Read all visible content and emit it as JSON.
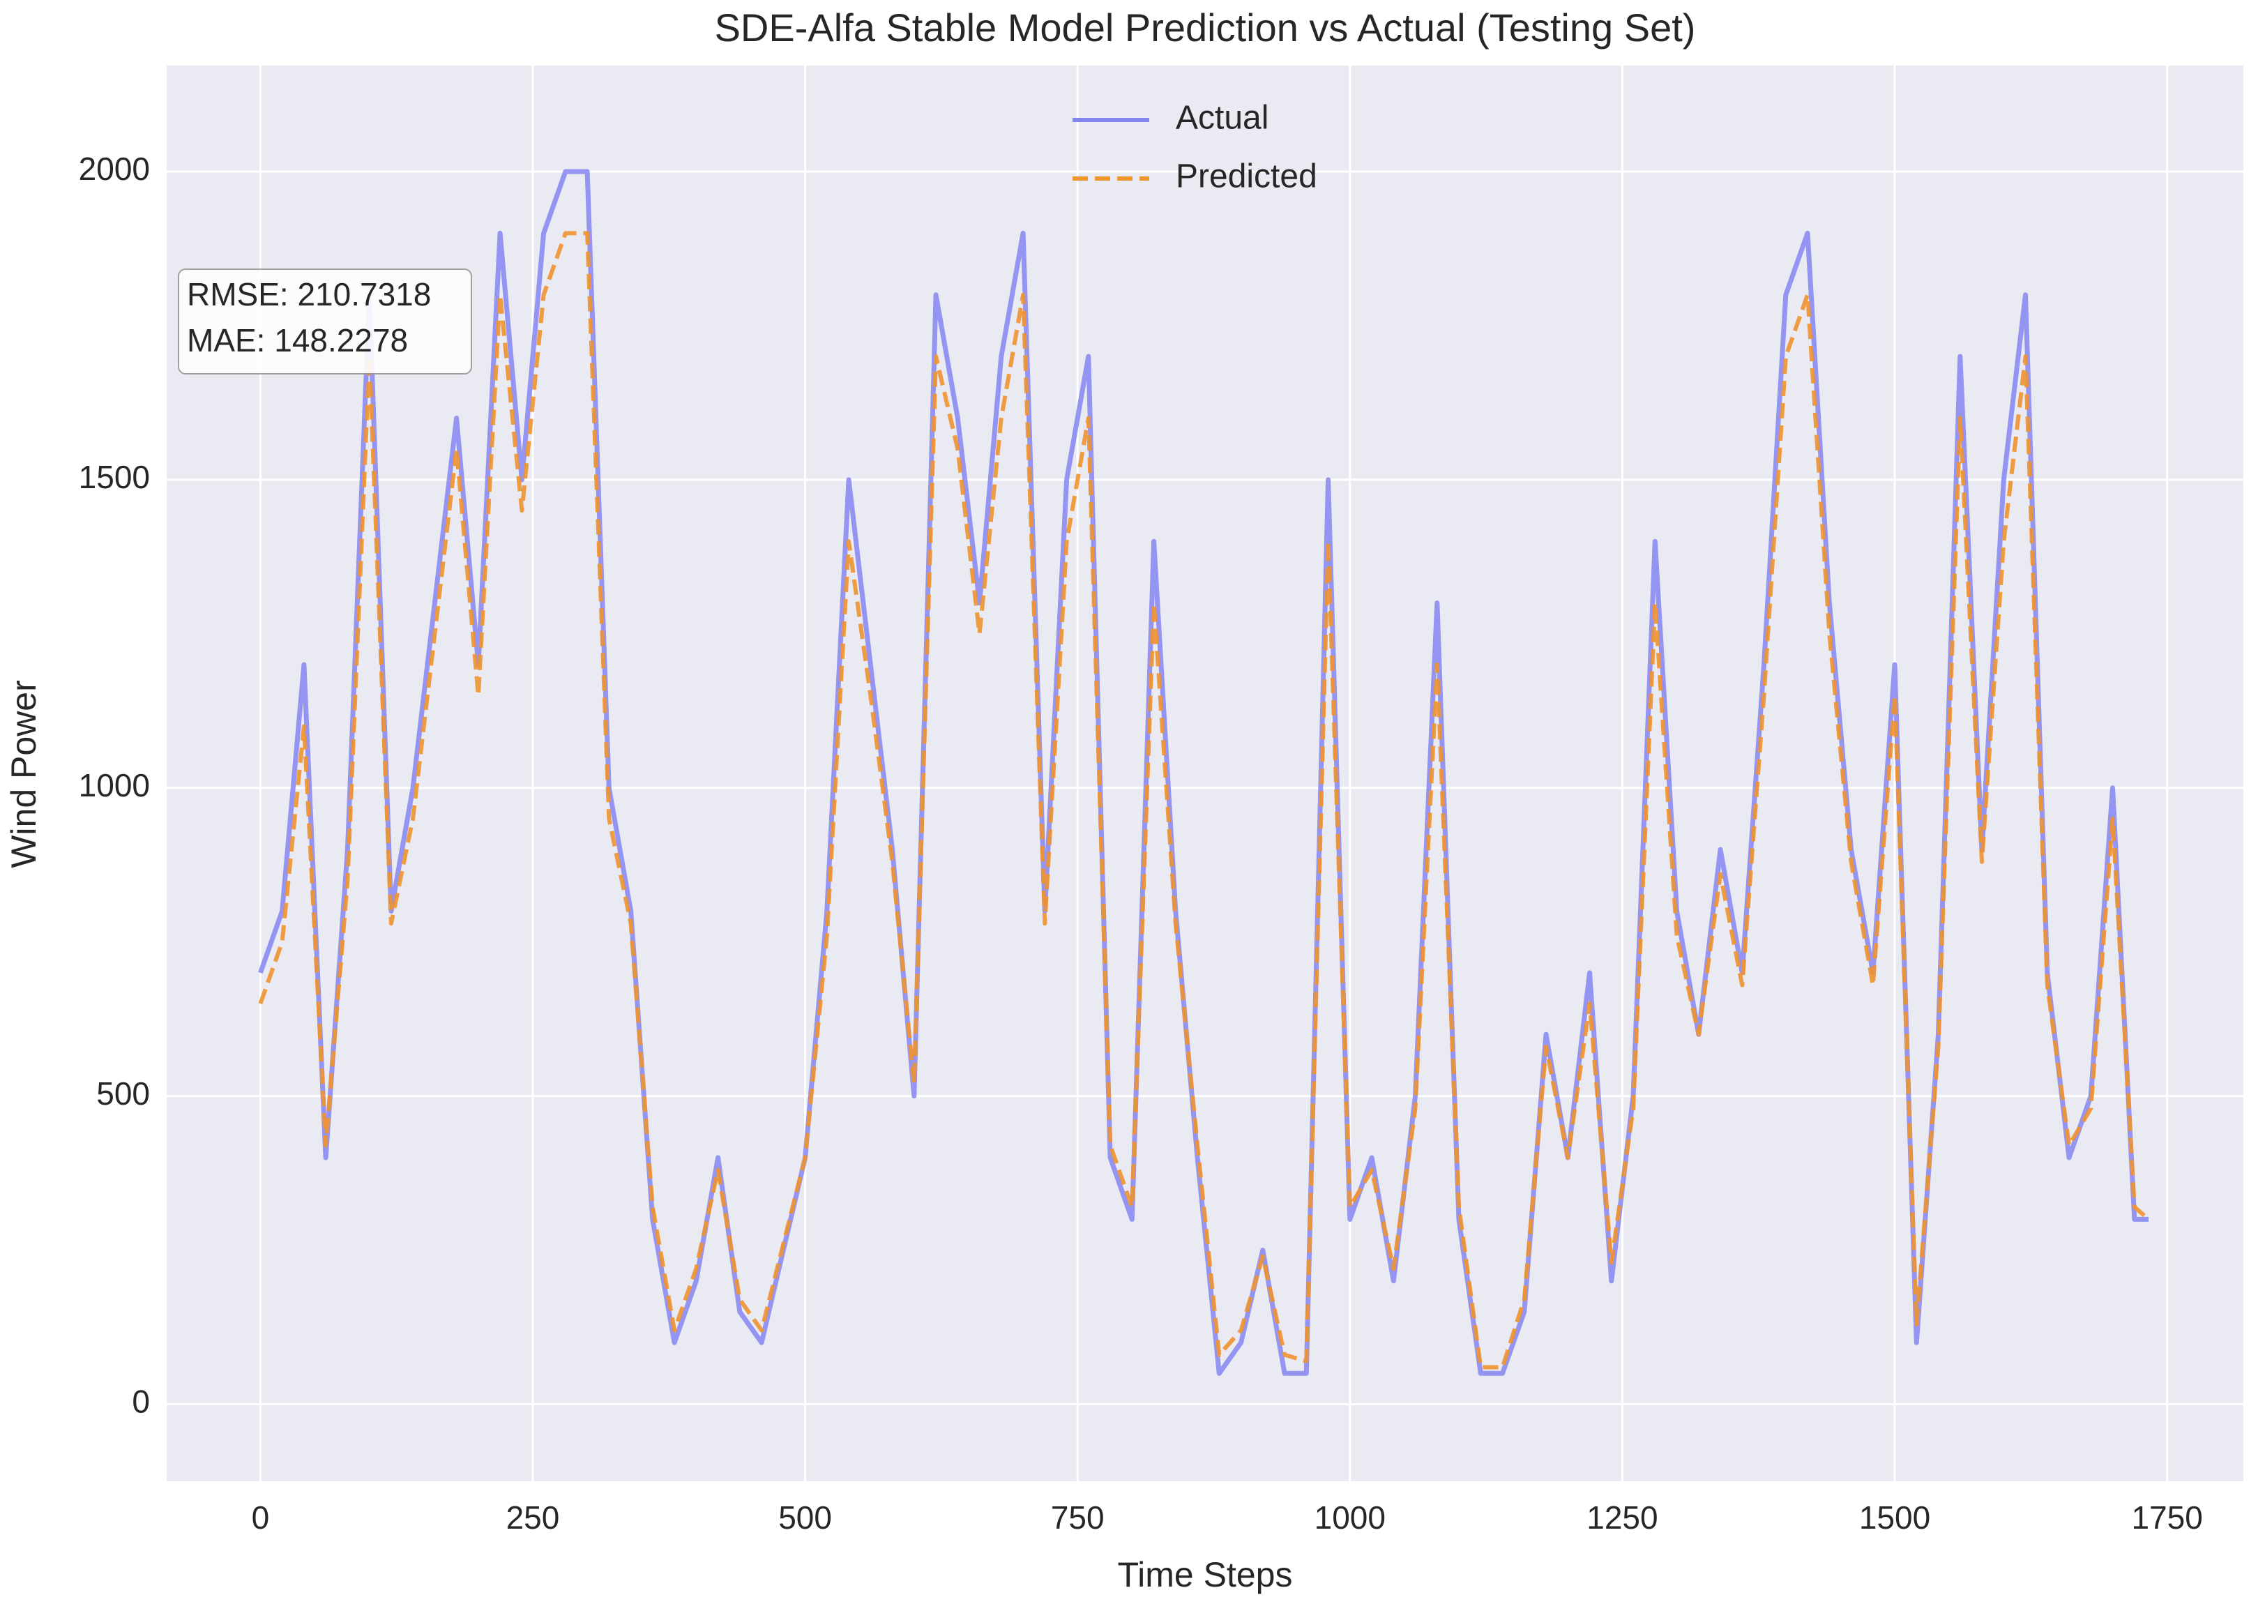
{
  "chart_data": {
    "type": "line",
    "title": "SDE-Alfa Stable Model Prediction vs Actual (Testing Set)",
    "xlabel": "Time Steps",
    "ylabel": "Wind Power",
    "annotations": [
      "RMSE: 210.7318",
      "MAE: 148.2278"
    ],
    "x": [
      0,
      20,
      40,
      60,
      80,
      100,
      120,
      140,
      160,
      180,
      200,
      220,
      240,
      260,
      280,
      300,
      320,
      340,
      360,
      380,
      400,
      420,
      440,
      460,
      480,
      500,
      520,
      540,
      560,
      580,
      600,
      620,
      640,
      660,
      680,
      700,
      720,
      740,
      760,
      780,
      800,
      820,
      840,
      860,
      880,
      900,
      920,
      940,
      960,
      980,
      1000,
      1020,
      1040,
      1060,
      1080,
      1100,
      1120,
      1140,
      1160,
      1180,
      1200,
      1220,
      1240,
      1260,
      1280,
      1300,
      1320,
      1340,
      1360,
      1380,
      1400,
      1420,
      1440,
      1460,
      1480,
      1500,
      1520,
      1540,
      1560,
      1580,
      1600,
      1620,
      1640,
      1660,
      1680,
      1700,
      1720,
      1733
    ],
    "series": [
      {
        "name": "Actual",
        "color": "#8585f2",
        "dash": false,
        "values": [
          700,
          800,
          1200,
          400,
          900,
          1800,
          800,
          1000,
          1300,
          1600,
          1200,
          1900,
          1500,
          1900,
          2000,
          2000,
          1000,
          800,
          300,
          100,
          200,
          400,
          150,
          100,
          250,
          400,
          800,
          1500,
          1200,
          900,
          500,
          1800,
          1600,
          1300,
          1700,
          1900,
          800,
          1500,
          1700,
          400,
          300,
          1400,
          800,
          400,
          50,
          100,
          250,
          50,
          50,
          1500,
          300,
          400,
          200,
          500,
          1300,
          300,
          50,
          50,
          150,
          600,
          400,
          700,
          200,
          500,
          1400,
          800,
          600,
          900,
          700,
          1200,
          1800,
          1900,
          1300,
          900,
          700,
          1200,
          100,
          600,
          1700,
          900,
          1500,
          1800,
          700,
          400,
          500,
          1000,
          300,
          300
        ]
      },
      {
        "name": "Predicted",
        "color": "#f0922e",
        "dash": true,
        "values": [
          650,
          750,
          1100,
          420,
          850,
          1700,
          780,
          950,
          1250,
          1550,
          1150,
          1800,
          1450,
          1800,
          1900,
          1900,
          950,
          780,
          320,
          120,
          220,
          380,
          170,
          120,
          260,
          400,
          760,
          1400,
          1150,
          880,
          520,
          1700,
          1550,
          1250,
          1600,
          1800,
          780,
          1400,
          1600,
          420,
          320,
          1300,
          780,
          420,
          80,
          120,
          240,
          80,
          70,
          1400,
          320,
          380,
          220,
          480,
          1200,
          320,
          60,
          60,
          170,
          580,
          400,
          650,
          230,
          480,
          1300,
          760,
          600,
          860,
          680,
          1150,
          1700,
          1800,
          1250,
          880,
          680,
          1150,
          130,
          580,
          1600,
          880,
          1400,
          1700,
          680,
          420,
          480,
          950,
          320,
          300
        ]
      }
    ],
    "xlim": [
      -86,
      1820
    ],
    "ylim": [
      -125,
      2172
    ],
    "xticks": [
      0,
      250,
      500,
      750,
      1000,
      1250,
      1500,
      1750
    ],
    "yticks": [
      0,
      500,
      1000,
      1500,
      2000
    ],
    "grid": true,
    "legend": "upper center"
  }
}
